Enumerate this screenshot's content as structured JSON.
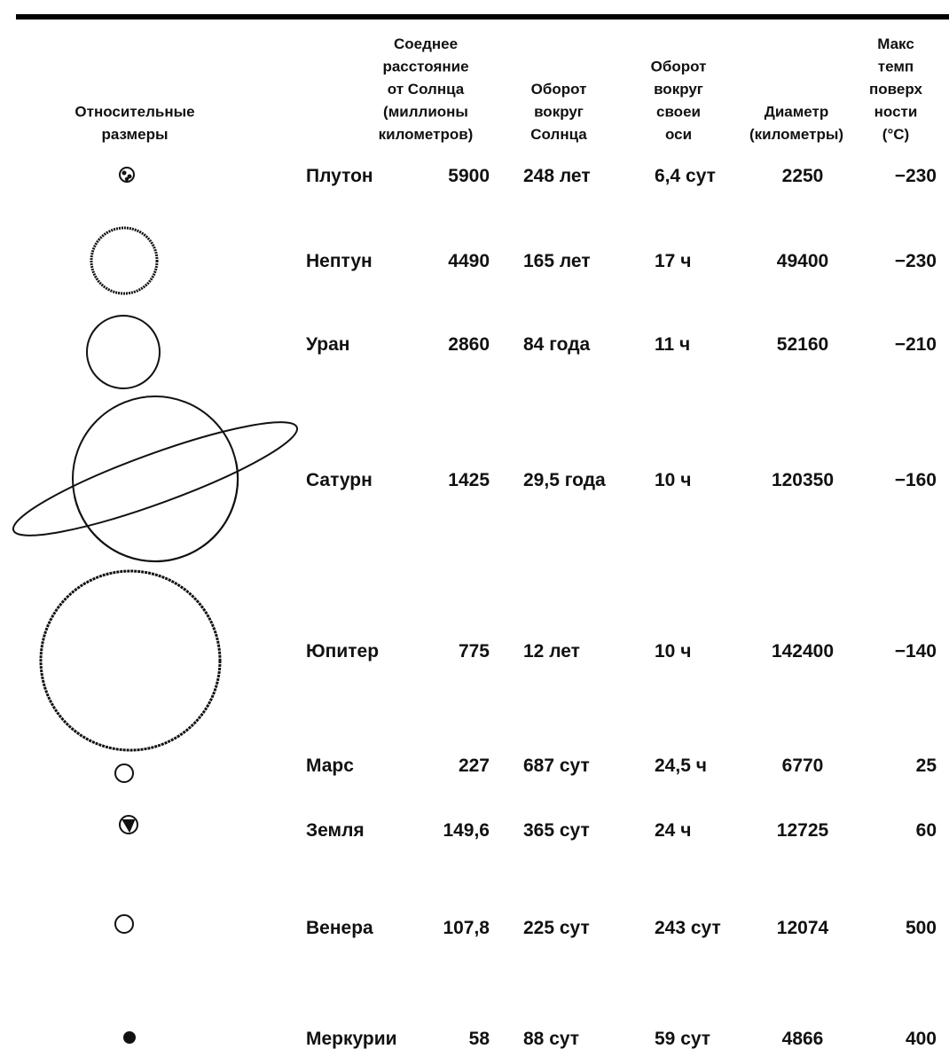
{
  "table": {
    "headers": [
      {
        "lines": [
          "Относительные",
          "размеры"
        ]
      },
      {
        "lines": [
          "Соеднее",
          "расстояние",
          "от Солнца",
          "(миллионы",
          "километров)"
        ]
      },
      {
        "lines": [
          "Оборот",
          "вокруг",
          "Солнца"
        ]
      },
      {
        "lines": [
          "Оборот",
          "вокруг",
          "своеи",
          "оси"
        ]
      },
      {
        "lines": [
          "Диаметр",
          "(километры)"
        ]
      },
      {
        "lines": [
          "Макс",
          "темп",
          "поверх",
          "ности",
          "(°C)"
        ]
      }
    ],
    "rows": [
      {
        "name": "Плутон",
        "distance": "5900",
        "orbit": "248 лет",
        "rotation": "6,4 сут",
        "diameter": "2250",
        "temperature": "−230"
      },
      {
        "name": "Нептун",
        "distance": "4490",
        "orbit": "165 лет",
        "rotation": "17 ч",
        "diameter": "49400",
        "temperature": "−230"
      },
      {
        "name": "Уран",
        "distance": "2860",
        "orbit": "84 года",
        "rotation": "11 ч",
        "diameter": "52160",
        "temperature": "−210"
      },
      {
        "name": "Сатурн",
        "distance": "1425",
        "orbit": "29,5 года",
        "rotation": "10 ч",
        "diameter": "120350",
        "temperature": "−160"
      },
      {
        "name": "Юпитер",
        "distance": "775",
        "orbit": "12 лет",
        "rotation": "10 ч",
        "diameter": "142400",
        "temperature": "−140"
      },
      {
        "name": "Марс",
        "distance": "227",
        "orbit": "687 сут",
        "rotation": "24,5 ч",
        "diameter": "6770",
        "temperature": "25"
      },
      {
        "name": "Земля",
        "distance": "149,6",
        "orbit": "365 сут",
        "rotation": "24 ч",
        "diameter": "12725",
        "temperature": "60"
      },
      {
        "name": "Венера",
        "distance": "107,8",
        "orbit": "225 сут",
        "rotation": "243 сут",
        "diameter": "12074",
        "temperature": "500"
      },
      {
        "name": "Меркурии",
        "distance": "58",
        "orbit": "88 сут",
        "rotation": "59 сут",
        "diameter": "4866",
        "temperature": "400"
      }
    ]
  }
}
